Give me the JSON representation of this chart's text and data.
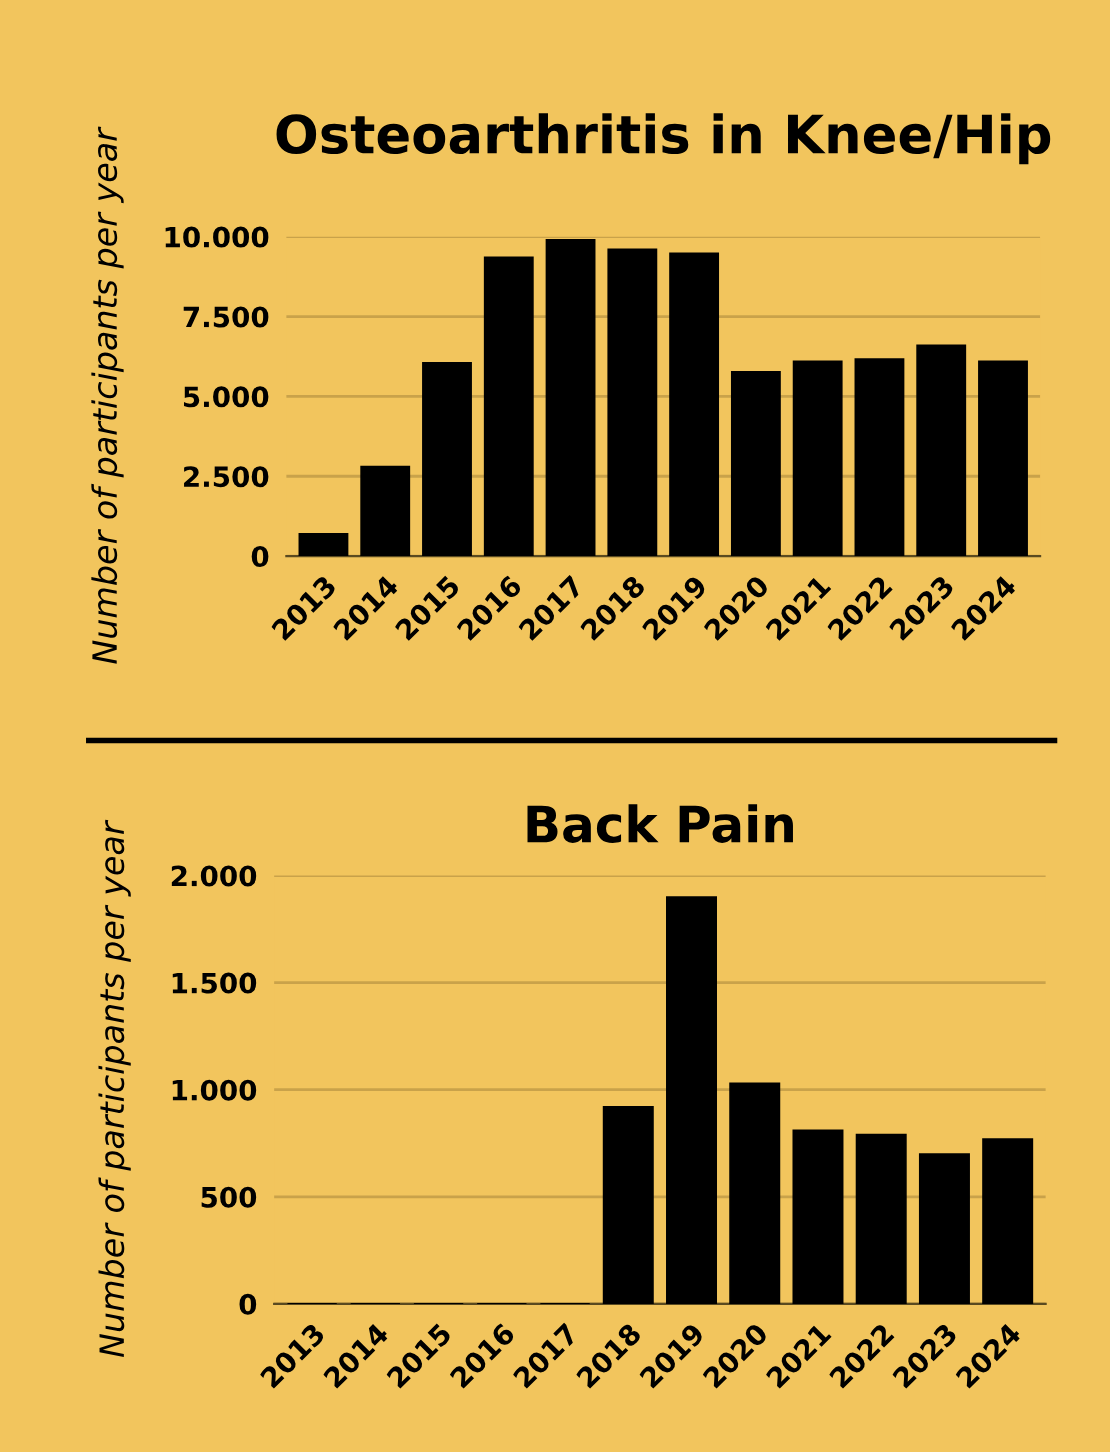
{
  "chart_data": [
    {
      "type": "bar",
      "title": "Osteoarthritis in Knee/Hip",
      "ylabel": "Number of participants per year",
      "categories": [
        "2013",
        "2014",
        "2015",
        "2016",
        "2017",
        "2018",
        "2019",
        "2020",
        "2021",
        "2022",
        "2023",
        "2024"
      ],
      "values": [
        700,
        2800,
        6050,
        9350,
        9900,
        9600,
        9480,
        5770,
        6100,
        6170,
        6600,
        6100
      ],
      "color": "#000000",
      "ylim": [
        0,
        10000
      ],
      "yticks": [
        0,
        {
          "value": 2500,
          "label": "2.500"
        },
        {
          "value": 5000,
          "label": "5.000"
        },
        {
          "value": 7500,
          "label": "7.500"
        },
        {
          "value": 10000,
          "label": "10.000"
        }
      ],
      "grid": "y"
    },
    {
      "type": "bar",
      "title": "Back Pain",
      "ylabel": "Number of participants per year",
      "categories": [
        "2013",
        "2014",
        "2015",
        "2016",
        "2017",
        "2018",
        "2019",
        "2020",
        "2021",
        "2022",
        "2023",
        "2024"
      ],
      "values": [
        0,
        0,
        0,
        0,
        0,
        920,
        1900,
        1030,
        810,
        790,
        700,
        770
      ],
      "color": "#000000",
      "ylim": [
        0,
        2000
      ],
      "yticks": [
        0,
        500,
        {
          "value": 1000,
          "label": "1.000"
        },
        {
          "value": 1500,
          "label": "1.500"
        },
        {
          "value": 2000,
          "label": "2.000"
        }
      ],
      "grid": "y"
    }
  ]
}
